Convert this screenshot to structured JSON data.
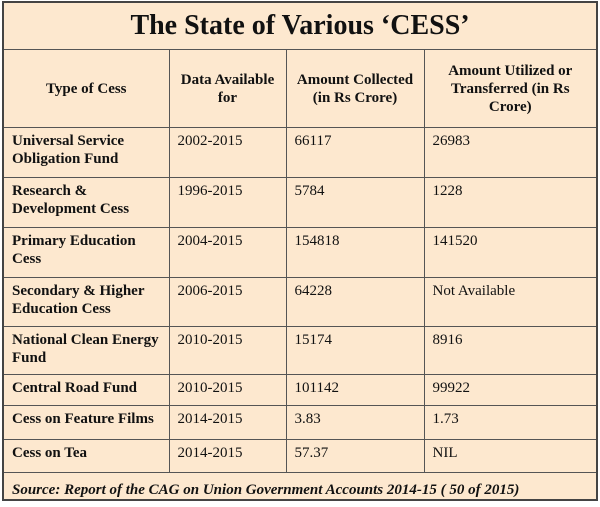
{
  "title": "The State of Various ‘CESS’",
  "table": {
    "header": [
      "Type of Cess",
      "Data Available for",
      "Amount Collected (in Rs Crore)",
      "Amount Utilized or Transferred (in Rs Crore)"
    ],
    "rows": [
      [
        "Universal Service Obligation Fund",
        "2002-2015",
        "66117",
        "26983"
      ],
      [
        "Research & Development Cess",
        "1996-2015",
        "5784",
        "1228"
      ],
      [
        "Primary Education Cess",
        "2004-2015",
        "154818",
        "141520"
      ],
      [
        "Secondary & Higher Education Cess",
        "2006-2015",
        "64228",
        "Not Available"
      ],
      [
        "National Clean Energy Fund",
        "2010-2015",
        "15174",
        "8916"
      ],
      [
        "Central Road Fund",
        "2010-2015",
        "101142",
        "99922"
      ],
      [
        "Cess on Feature Films",
        "2014-2015",
        "3.83",
        "1.73"
      ],
      [
        "Cess on Tea",
        "2014-2015",
        "57.37",
        "NIL"
      ]
    ]
  },
  "source": "Source: Report of the CAG on Union Government Accounts 2014-15 ( 50 of 2015)"
}
